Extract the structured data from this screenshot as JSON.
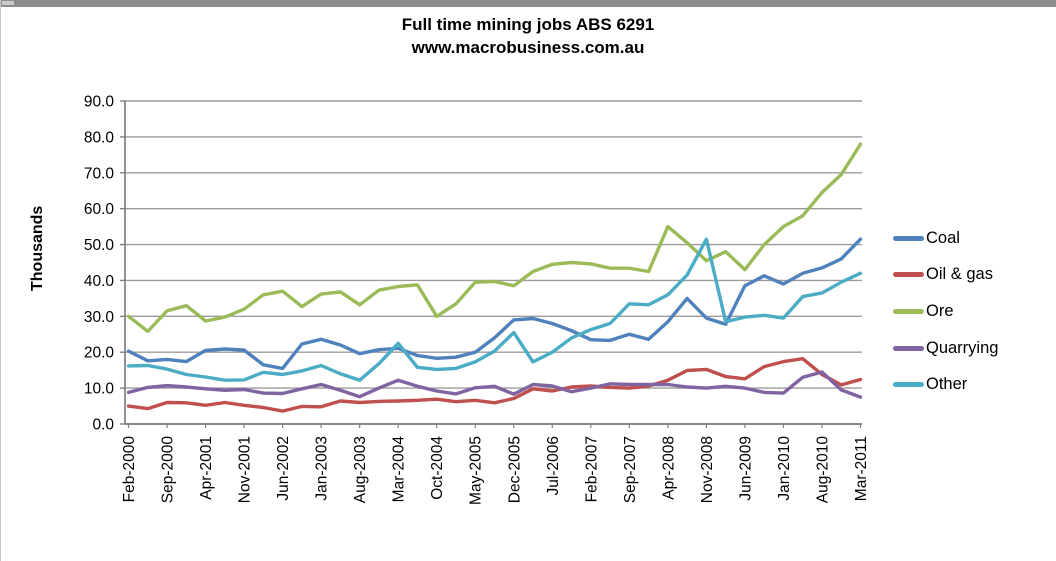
{
  "window": {
    "top_bar_color": "#8c8c8c"
  },
  "chart_data": {
    "type": "line",
    "title": "Full time mining jobs ABS 6291",
    "subtitle": "www.macrobusiness.com.au",
    "xlabel": "",
    "ylabel": "Thousands",
    "ylim": [
      0,
      90
    ],
    "ytick_step": 10,
    "y_tick_labels": [
      "0.0",
      "10.0",
      "20.0",
      "30.0",
      "40.0",
      "50.0",
      "60.0",
      "70.0",
      "80.0",
      "90.0"
    ],
    "grid": "horizontal",
    "legend_position": "right",
    "axis_color": "#7f7f7f",
    "gridline_color": "#9b9b9b",
    "x_tick_labels": [
      "Feb-2000",
      "Sep-2000",
      "Apr-2001",
      "Nov-2001",
      "Jun-2002",
      "Jan-2003",
      "Aug-2003",
      "Mar-2004",
      "Oct-2004",
      "May-2005",
      "Dec-2005",
      "Jul-2006",
      "Feb-2007",
      "Sep-2007",
      "Apr-2008",
      "Nov-2008",
      "Jun-2009",
      "Jan-2010",
      "Aug-2010",
      "Mar-2011"
    ],
    "x_label_every_nth_point": 2,
    "series": [
      {
        "name": "Coal",
        "color": "#4F81BD",
        "values": [
          20.3,
          17.6,
          18,
          17.4,
          20.5,
          20.9,
          20.6,
          16.5,
          15.5,
          22.3,
          23.6,
          22,
          19.6,
          20.7,
          21.1,
          19.1,
          18.3,
          18.6,
          20,
          24,
          29,
          29.4,
          28,
          26,
          23.5,
          23.3,
          25,
          23.6,
          28.5,
          35,
          29.5,
          27.8,
          38.5,
          41.3,
          39,
          42,
          43.5,
          46,
          51.5
        ]
      },
      {
        "name": "Oil & gas",
        "color": "#C0504D",
        "values": [
          5,
          4.3,
          6,
          5.9,
          5.2,
          6,
          5.2,
          4.6,
          3.6,
          4.9,
          4.8,
          6.4,
          6,
          6.3,
          6.4,
          6.6,
          6.9,
          6.2,
          6.6,
          5.9,
          7.1,
          9.8,
          9.2,
          10.3,
          10.6,
          10.2,
          10,
          10.6,
          12.2,
          14.9,
          15.2,
          13.2,
          12.6,
          16,
          17.4,
          18.2,
          13.8,
          10.9,
          12.4
        ]
      },
      {
        "name": "Ore",
        "color": "#9BBB59",
        "values": [
          30,
          25.8,
          31.5,
          33,
          28.7,
          29.8,
          32,
          36,
          37,
          32.7,
          36.2,
          36.8,
          33.2,
          37.3,
          38.3,
          38.8,
          30,
          33.5,
          39.5,
          39.7,
          38.5,
          42.5,
          44.5,
          45,
          44.6,
          43.4,
          43.4,
          42.5,
          55,
          50.5,
          45.5,
          48,
          43,
          50,
          55,
          58,
          64.5,
          69.5,
          78
        ]
      },
      {
        "name": "Quarrying",
        "color": "#8064A2",
        "values": [
          8.8,
          10.2,
          10.7,
          10.3,
          9.8,
          9.4,
          9.6,
          8.6,
          8.5,
          9.8,
          11,
          9.4,
          7.6,
          10,
          12.2,
          10.5,
          9.2,
          8.4,
          10.1,
          10.5,
          8.3,
          11,
          10.6,
          9,
          10,
          11.2,
          11,
          11,
          11,
          10.3,
          10,
          10.5,
          10,
          8.8,
          8.6,
          13,
          14.5,
          9.5,
          7.5
        ]
      },
      {
        "name": "Other",
        "color": "#4BACC6",
        "values": [
          16.2,
          16.3,
          15.3,
          13.8,
          13.1,
          12.2,
          12.3,
          14.4,
          13.8,
          14.8,
          16.3,
          14,
          12.2,
          16.8,
          22.5,
          15.8,
          15.2,
          15.5,
          17.3,
          20.3,
          25.5,
          17.3,
          20,
          24,
          26.3,
          28,
          33.5,
          33.2,
          36,
          41.5,
          51.5,
          28.5,
          29.8,
          30.3,
          29.5,
          35.5,
          36.5,
          39.5,
          42
        ]
      }
    ]
  }
}
